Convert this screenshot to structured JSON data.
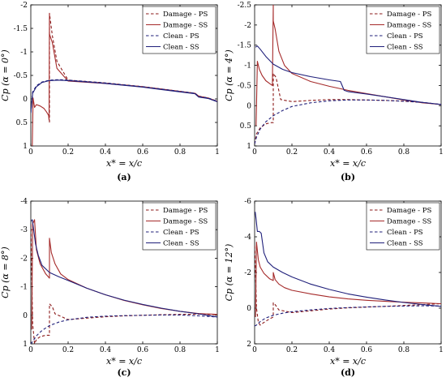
{
  "chart_data": [
    {
      "type": "line",
      "panel_label": "(a)",
      "xlabel": "x* = x/c",
      "ylabel": "Cp (α = 0°)",
      "alpha_text": "0°",
      "xlim": [
        0,
        1
      ],
      "ylim": [
        -2,
        1
      ],
      "y_reversed": true,
      "xticks": [
        0,
        0.2,
        0.4,
        0.6,
        0.8,
        1
      ],
      "xtick_labels": [
        "0",
        "0.2",
        "0.4",
        "0.6",
        "0.8",
        "1"
      ],
      "yticks": [
        -2,
        -1.5,
        -1,
        -0.5,
        0,
        0.5,
        1
      ],
      "ytick_labels": [
        "-2",
        "-1.5",
        "-1",
        "-0.5",
        "0",
        "0.5",
        "1"
      ],
      "legend": "top-right",
      "series": [
        {
          "name": "Damage - PS",
          "color": "#8B1A1A",
          "dash": "dashed",
          "x": [
            0.1,
            0.1,
            0.115,
            0.14,
            0.2,
            0.4,
            0.6,
            0.8,
            0.88,
            0.9,
            0.95,
            1.0
          ],
          "y": [
            0.5,
            -1.82,
            -1.35,
            -0.8,
            -0.4,
            -0.34,
            -0.26,
            -0.16,
            -0.12,
            -0.06,
            -0.02,
            0.05
          ]
        },
        {
          "name": "Damage - SS",
          "color": "#A52A2A",
          "dash": "solid",
          "x": [
            0.008,
            0.012,
            0.02,
            0.03,
            0.05,
            0.07,
            0.085,
            0.095,
            0.098,
            0.1,
            0.1,
            0.115,
            0.14,
            0.2,
            0.4,
            0.6,
            0.8,
            0.88,
            0.9,
            0.95,
            1.0
          ],
          "y": [
            1.0,
            -0.02,
            0.18,
            0.12,
            0.15,
            0.2,
            0.28,
            0.35,
            0.45,
            -1.82,
            -1.38,
            -1.2,
            -0.65,
            -0.38,
            -0.33,
            -0.26,
            -0.16,
            -0.12,
            -0.06,
            -0.02,
            0.05
          ]
        },
        {
          "name": "Clean - PS",
          "color": "#1F1F7A",
          "dash": "dashed",
          "x": [
            0.0,
            0.01,
            0.03,
            0.06,
            0.1,
            0.15,
            0.2,
            0.3,
            0.4,
            0.5,
            0.6,
            0.7,
            0.8,
            0.88,
            0.9,
            0.95,
            1.0
          ],
          "y": [
            0.3,
            -0.15,
            -0.28,
            -0.36,
            -0.4,
            -0.41,
            -0.4,
            -0.37,
            -0.34,
            -0.3,
            -0.26,
            -0.21,
            -0.16,
            -0.12,
            -0.05,
            -0.02,
            0.05
          ]
        },
        {
          "name": "Clean - SS",
          "color": "#1F1F7A",
          "dash": "solid",
          "x": [
            0.0,
            0.01,
            0.03,
            0.06,
            0.1,
            0.15,
            0.2,
            0.3,
            0.4,
            0.5,
            0.6,
            0.7,
            0.8,
            0.88,
            0.9,
            0.95,
            1.0
          ],
          "y": [
            0.3,
            -0.12,
            -0.26,
            -0.35,
            -0.39,
            -0.4,
            -0.39,
            -0.36,
            -0.33,
            -0.29,
            -0.25,
            -0.2,
            -0.15,
            -0.11,
            -0.04,
            -0.01,
            0.06
          ]
        }
      ]
    },
    {
      "type": "line",
      "panel_label": "(b)",
      "xlabel": "x* = x/c",
      "ylabel": "Cp (α = 4°)",
      "alpha_text": "4°",
      "xlim": [
        0,
        1
      ],
      "ylim": [
        -2.5,
        1
      ],
      "y_reversed": true,
      "xticks": [
        0,
        0.2,
        0.4,
        0.6,
        0.8,
        1
      ],
      "xtick_labels": [
        "0",
        "0.2",
        "0.4",
        "0.6",
        "0.8",
        "1"
      ],
      "yticks": [
        -2.5,
        -2,
        -1.5,
        -1,
        -0.5,
        0,
        0.5,
        1
      ],
      "ytick_labels": [
        "-2.5",
        "-2",
        "-1.5",
        "-1",
        "-0.5",
        "0",
        "0.5",
        "1"
      ],
      "legend": "top-right",
      "series": [
        {
          "name": "Damage - PS",
          "color": "#8B1A1A",
          "dash": "dashed",
          "x": [
            0.0,
            0.01,
            0.03,
            0.06,
            0.09,
            0.1,
            0.1,
            0.115,
            0.14,
            0.2,
            0.3,
            0.4,
            0.5,
            0.6,
            0.7,
            0.8,
            0.9,
            1.0
          ],
          "y": [
            0.95,
            0.7,
            0.55,
            0.45,
            0.42,
            0.42,
            -0.8,
            -0.7,
            -0.15,
            -0.1,
            -0.13,
            -0.15,
            -0.15,
            -0.14,
            -0.13,
            -0.11,
            -0.08,
            -0.03
          ]
        },
        {
          "name": "Damage - SS",
          "color": "#A52A2A",
          "dash": "solid",
          "x": [
            0.008,
            0.015,
            0.025,
            0.04,
            0.06,
            0.08,
            0.095,
            0.1,
            0.1,
            0.11,
            0.13,
            0.16,
            0.2,
            0.3,
            0.4,
            0.5,
            0.6,
            0.7,
            0.8,
            0.9,
            1.0
          ],
          "y": [
            0.5,
            -1.1,
            -0.9,
            -0.75,
            -0.62,
            -0.55,
            -0.5,
            -2.5,
            -2.1,
            -1.9,
            -1.35,
            -1.0,
            -0.8,
            -0.6,
            -0.48,
            -0.38,
            -0.3,
            -0.22,
            -0.14,
            -0.07,
            -0.03
          ]
        },
        {
          "name": "Clean - PS",
          "color": "#1F1F7A",
          "dash": "dashed",
          "x": [
            0.0,
            0.01,
            0.03,
            0.06,
            0.1,
            0.15,
            0.2,
            0.3,
            0.4,
            0.5,
            0.6,
            0.7,
            0.8,
            0.9,
            1.0
          ],
          "y": [
            0.95,
            0.78,
            0.58,
            0.4,
            0.25,
            0.12,
            0.02,
            -0.07,
            -0.12,
            -0.14,
            -0.14,
            -0.13,
            -0.11,
            -0.08,
            -0.03
          ]
        },
        {
          "name": "Clean - SS",
          "color": "#1F1F7A",
          "dash": "solid",
          "x": [
            0.005,
            0.015,
            0.03,
            0.06,
            0.1,
            0.15,
            0.2,
            0.3,
            0.4,
            0.46,
            0.48,
            0.5,
            0.6,
            0.7,
            0.8,
            0.9,
            1.0
          ],
          "y": [
            -1.45,
            -1.48,
            -1.4,
            -1.22,
            -1.03,
            -0.9,
            -0.82,
            -0.72,
            -0.64,
            -0.6,
            -0.38,
            -0.35,
            -0.29,
            -0.22,
            -0.15,
            -0.08,
            -0.03
          ]
        }
      ]
    },
    {
      "type": "line",
      "panel_label": "(c)",
      "xlabel": "x* = x/c",
      "ylabel": "Cp (α = 8°)",
      "alpha_text": "8°",
      "xlim": [
        0,
        1
      ],
      "ylim": [
        -4,
        1
      ],
      "y_reversed": true,
      "xticks": [
        0,
        0.2,
        0.4,
        0.6,
        0.8,
        1
      ],
      "xtick_labels": [
        "0",
        "0.2",
        "0.4",
        "0.6",
        "0.8",
        "1"
      ],
      "yticks": [
        -4,
        -3,
        -2,
        -1,
        0,
        1
      ],
      "ytick_labels": [
        "-4",
        "-3",
        "-2",
        "-1",
        "0",
        "1"
      ],
      "legend": "top-right",
      "series": [
        {
          "name": "Damage - PS",
          "color": "#8B1A1A",
          "dash": "dashed",
          "x": [
            0.0,
            0.01,
            0.02,
            0.03,
            0.05,
            0.08,
            0.1,
            0.1,
            0.115,
            0.13,
            0.2,
            0.3,
            0.4,
            0.5,
            0.6,
            0.7,
            0.8,
            0.9,
            1.0
          ],
          "y": [
            -3.2,
            0.3,
            1.0,
            0.85,
            0.75,
            0.7,
            0.7,
            -0.4,
            -0.3,
            -0.05,
            0.15,
            0.1,
            0.05,
            0.02,
            0.0,
            -0.02,
            -0.03,
            -0.04,
            -0.02
          ]
        },
        {
          "name": "Damage - SS",
          "color": "#A52A2A",
          "dash": "solid",
          "x": [
            0.005,
            0.01,
            0.02,
            0.03,
            0.05,
            0.08,
            0.1,
            0.1,
            0.11,
            0.13,
            0.16,
            0.2,
            0.3,
            0.4,
            0.5,
            0.6,
            0.7,
            0.8,
            0.9,
            1.0
          ],
          "y": [
            0.5,
            -3.2,
            -3.35,
            -2.3,
            -1.8,
            -1.45,
            -1.3,
            -2.7,
            -2.2,
            -1.8,
            -1.45,
            -1.25,
            -0.95,
            -0.72,
            -0.52,
            -0.37,
            -0.24,
            -0.14,
            -0.06,
            -0.03
          ]
        },
        {
          "name": "Clean - PS",
          "color": "#1F1F7A",
          "dash": "dashed",
          "x": [
            0.0,
            0.01,
            0.03,
            0.06,
            0.1,
            0.15,
            0.2,
            0.3,
            0.4,
            0.5,
            0.6,
            0.7,
            0.8,
            0.9,
            1.0
          ],
          "y": [
            1.0,
            0.92,
            0.72,
            0.53,
            0.36,
            0.24,
            0.16,
            0.07,
            0.03,
            0.01,
            0.0,
            -0.01,
            -0.01,
            0.02,
            0.06
          ]
        },
        {
          "name": "Clean - SS",
          "color": "#1F1F7A",
          "dash": "solid",
          "x": [
            0.003,
            0.008,
            0.015,
            0.025,
            0.04,
            0.06,
            0.1,
            0.15,
            0.2,
            0.3,
            0.4,
            0.5,
            0.6,
            0.7,
            0.8,
            0.9,
            1.0
          ],
          "y": [
            -3.3,
            -3.35,
            -3.0,
            -2.5,
            -2.1,
            -1.75,
            -1.5,
            -1.35,
            -1.22,
            -0.95,
            -0.72,
            -0.53,
            -0.38,
            -0.25,
            -0.14,
            -0.05,
            0.06
          ]
        }
      ]
    },
    {
      "type": "line",
      "panel_label": "(d)",
      "xlabel": "x* = x/c",
      "ylabel": "Cp (α = 12°)",
      "alpha_text": "12°",
      "xlim": [
        0,
        1
      ],
      "ylim": [
        -6,
        2
      ],
      "y_reversed": true,
      "xticks": [
        0,
        0.2,
        0.4,
        0.6,
        0.8,
        1
      ],
      "xtick_labels": [
        "0",
        "0.2",
        "0.4",
        "0.6",
        "0.8",
        "1"
      ],
      "yticks": [
        -6,
        -4,
        -2,
        0,
        2
      ],
      "ytick_labels": [
        "-6",
        "-4",
        "-2",
        "0",
        "2"
      ],
      "legend": "top-right",
      "series": [
        {
          "name": "Damage - PS",
          "color": "#8B1A1A",
          "dash": "dashed",
          "x": [
            0.0,
            0.005,
            0.01,
            0.02,
            0.03,
            0.05,
            0.08,
            0.1,
            0.1,
            0.11,
            0.13,
            0.2,
            0.3,
            0.4,
            0.5,
            0.6,
            0.7,
            0.8,
            0.9,
            1.0
          ],
          "y": [
            -3.5,
            -2.0,
            0.0,
            0.8,
            0.95,
            0.8,
            0.6,
            0.5,
            -0.3,
            -0.2,
            0.1,
            0.25,
            0.15,
            0.05,
            -0.02,
            -0.06,
            -0.1,
            -0.15,
            -0.2,
            -0.25
          ]
        },
        {
          "name": "Damage - SS",
          "color": "#A52A2A",
          "dash": "solid",
          "x": [
            0.005,
            0.01,
            0.02,
            0.03,
            0.05,
            0.08,
            0.1,
            0.1,
            0.11,
            0.13,
            0.16,
            0.2,
            0.3,
            0.4,
            0.5,
            0.6,
            0.7,
            0.8,
            0.9,
            1.0
          ],
          "y": [
            0.5,
            -3.7,
            -2.7,
            -2.3,
            -1.95,
            -1.65,
            -1.55,
            -2.0,
            -1.6,
            -1.35,
            -1.15,
            -1.0,
            -0.8,
            -0.63,
            -0.52,
            -0.44,
            -0.38,
            -0.33,
            -0.29,
            -0.25
          ]
        },
        {
          "name": "Clean - PS",
          "color": "#1F1F7A",
          "dash": "dashed",
          "x": [
            0.0,
            0.01,
            0.03,
            0.06,
            0.1,
            0.15,
            0.2,
            0.3,
            0.4,
            0.5,
            0.6,
            0.7,
            0.8,
            0.9,
            1.0
          ],
          "y": [
            1.0,
            0.95,
            0.75,
            0.55,
            0.4,
            0.28,
            0.2,
            0.1,
            0.02,
            -0.03,
            -0.07,
            -0.1,
            -0.12,
            -0.13,
            -0.12
          ]
        },
        {
          "name": "Clean - SS",
          "color": "#1F1F7A",
          "dash": "solid",
          "x": [
            0.003,
            0.008,
            0.015,
            0.025,
            0.035,
            0.05,
            0.07,
            0.1,
            0.15,
            0.2,
            0.3,
            0.4,
            0.5,
            0.6,
            0.7,
            0.8,
            0.9,
            1.0
          ],
          "y": [
            -5.4,
            -5.0,
            -4.3,
            -4.3,
            -4.2,
            -3.1,
            -2.6,
            -2.3,
            -2.0,
            -1.75,
            -1.35,
            -1.05,
            -0.8,
            -0.62,
            -0.46,
            -0.32,
            -0.2,
            -0.1
          ]
        }
      ]
    }
  ]
}
